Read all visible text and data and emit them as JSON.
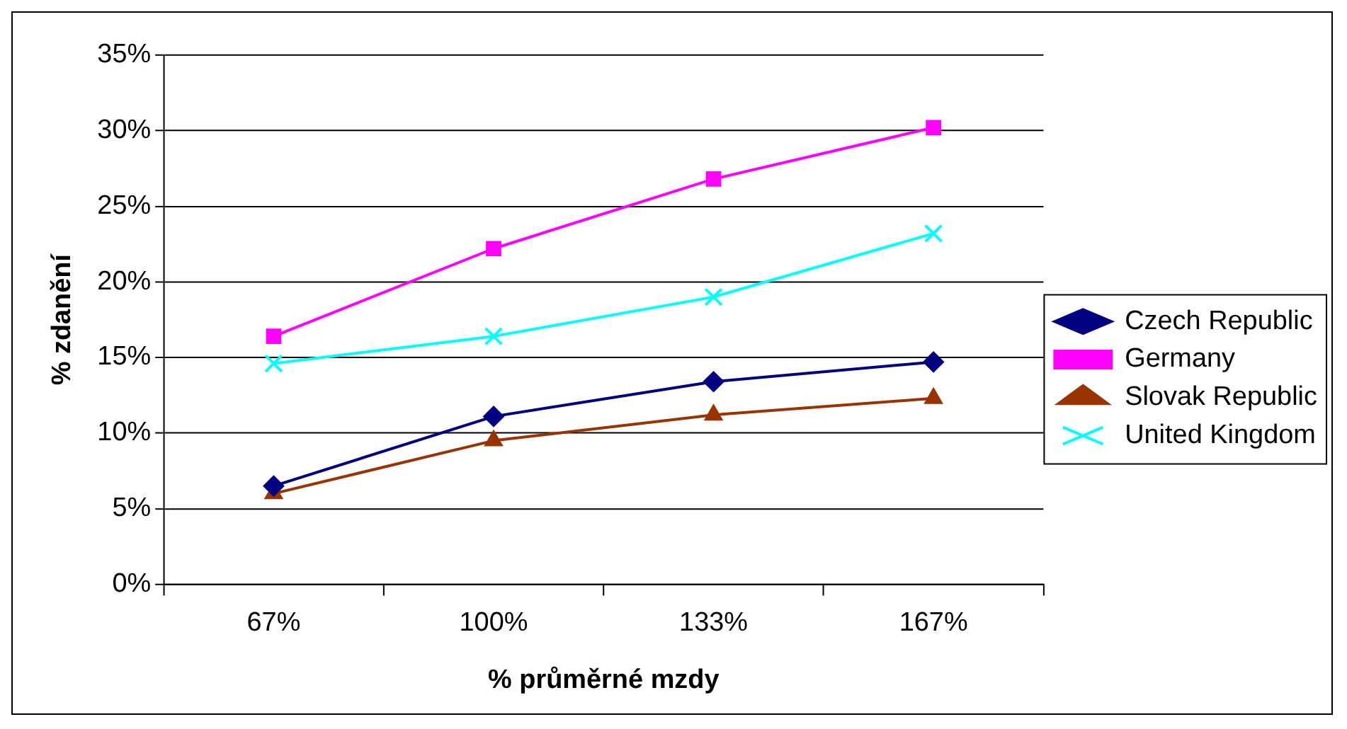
{
  "chart_data": {
    "type": "line",
    "xlabel": "% průměrné mzdy",
    "ylabel": "% zdanění",
    "categories": [
      "67%",
      "100%",
      "133%",
      "167%"
    ],
    "series": [
      {
        "name": "Czech Republic",
        "color": "#000080",
        "marker": "diamond",
        "values": [
          6.5,
          11.1,
          13.4,
          14.7
        ]
      },
      {
        "name": "Germany",
        "color": "#ff00ff",
        "marker": "square",
        "values": [
          16.4,
          22.2,
          26.8,
          30.2
        ]
      },
      {
        "name": "Slovak Republic",
        "color": "#993300",
        "marker": "triangle",
        "values": [
          6.0,
          9.5,
          11.2,
          12.3
        ]
      },
      {
        "name": "United Kingdom",
        "color": "#00ffff",
        "marker": "cross",
        "values": [
          14.6,
          16.4,
          19.0,
          23.2
        ]
      }
    ],
    "ylim": [
      0,
      35
    ],
    "yticks": [
      {
        "value": 0,
        "label": "0%"
      },
      {
        "value": 5,
        "label": "5%"
      },
      {
        "value": 10,
        "label": "10%"
      },
      {
        "value": 15,
        "label": "15%"
      },
      {
        "value": 20,
        "label": "20%"
      },
      {
        "value": 25,
        "label": "25%"
      },
      {
        "value": 30,
        "label": "30%"
      },
      {
        "value": 35,
        "label": "35%"
      }
    ],
    "grid": "y",
    "legend": "right",
    "line_style": "solid"
  }
}
